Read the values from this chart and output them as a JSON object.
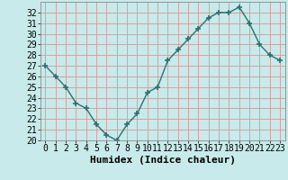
{
  "x": [
    0,
    1,
    2,
    3,
    4,
    5,
    6,
    7,
    8,
    9,
    10,
    11,
    12,
    13,
    14,
    15,
    16,
    17,
    18,
    19,
    20,
    21,
    22,
    23
  ],
  "y": [
    27,
    26,
    25,
    23.5,
    23,
    21.5,
    20.5,
    20,
    21.5,
    22.5,
    24.5,
    25,
    27.5,
    28.5,
    29.5,
    30.5,
    31.5,
    32,
    32,
    32.5,
    31,
    29,
    28,
    27.5
  ],
  "line_color": "#2d7070",
  "marker": "+",
  "bg_color": "#c8eaea",
  "grid_color": "#d8a0a0",
  "xlabel": "Humidex (Indice chaleur)",
  "xlim": [
    -0.5,
    23.5
  ],
  "ylim": [
    20,
    33
  ],
  "yticks": [
    20,
    21,
    22,
    23,
    24,
    25,
    26,
    27,
    28,
    29,
    30,
    31,
    32
  ],
  "xticks": [
    0,
    1,
    2,
    3,
    4,
    5,
    6,
    7,
    8,
    9,
    10,
    11,
    12,
    13,
    14,
    15,
    16,
    17,
    18,
    19,
    20,
    21,
    22,
    23
  ],
  "tick_fontsize": 7,
  "xlabel_fontsize": 8
}
